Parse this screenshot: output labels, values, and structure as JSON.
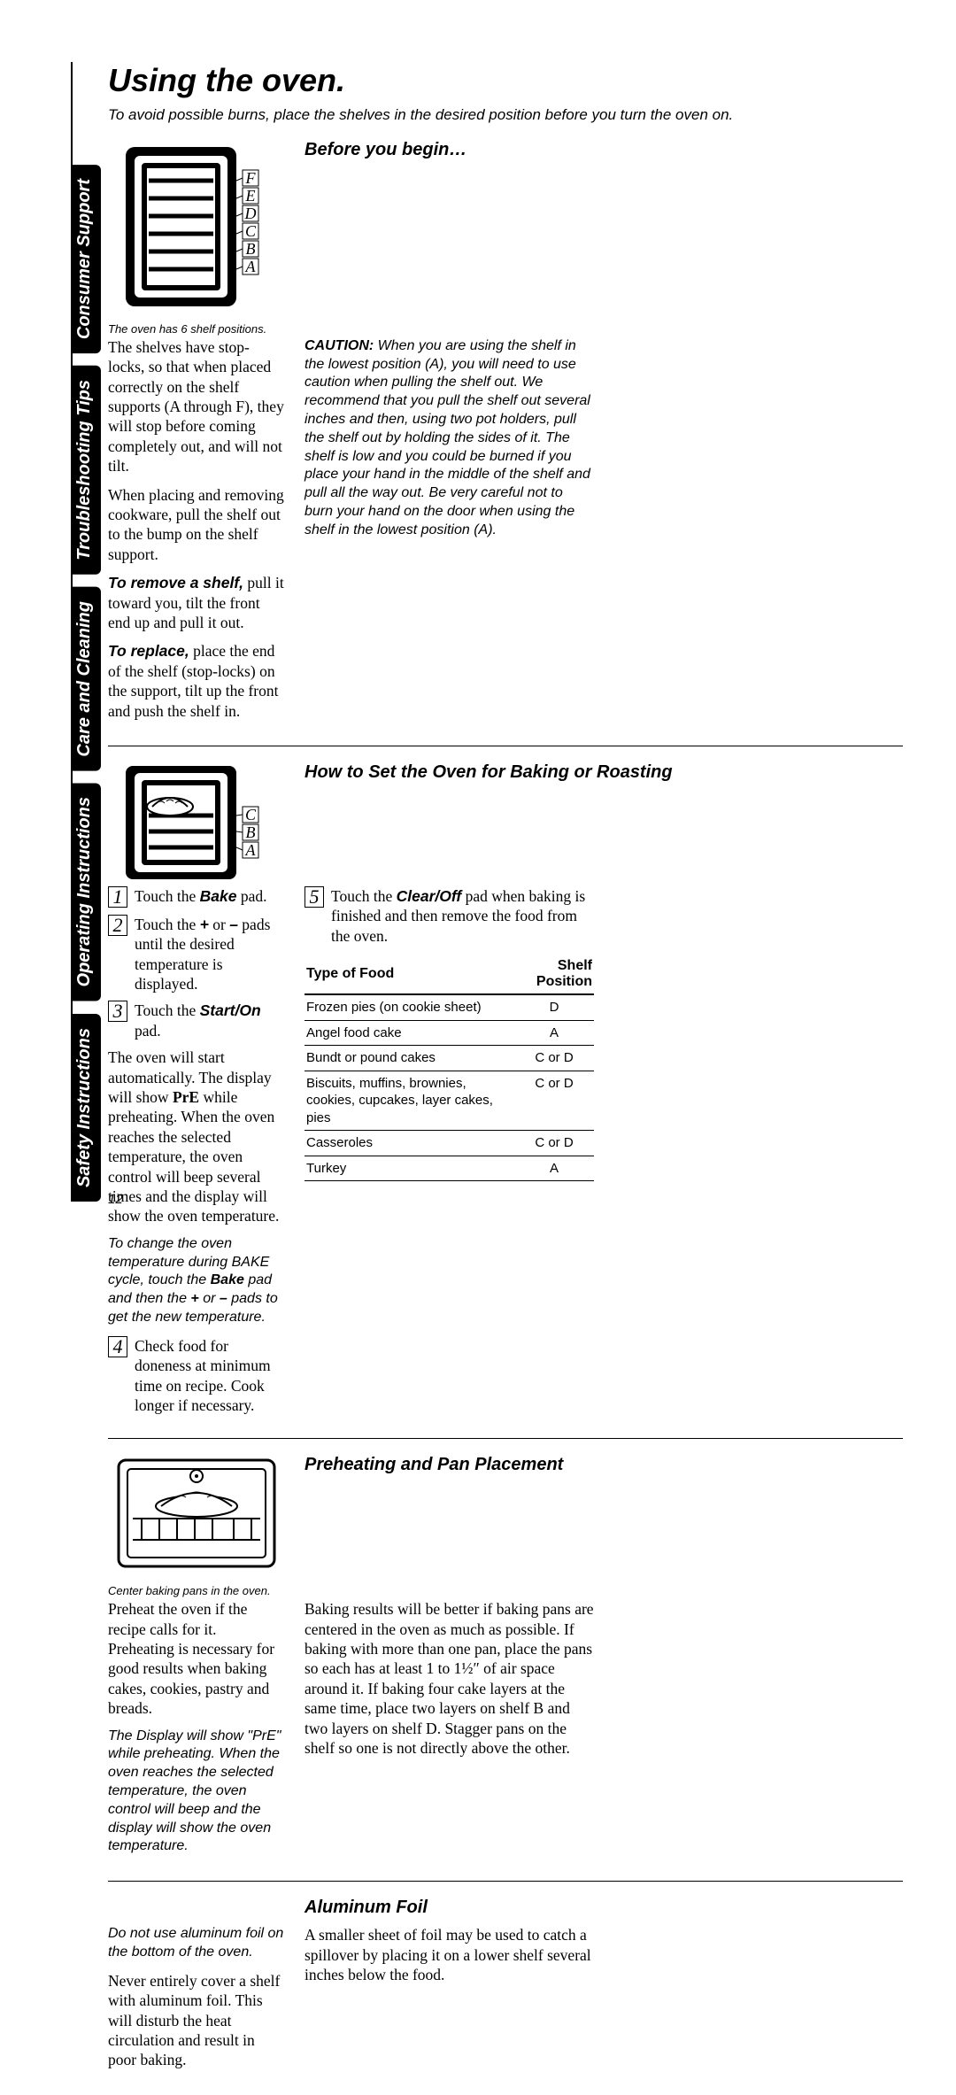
{
  "page_number": "12",
  "tabs": {
    "safety": "Safety Instructions",
    "operating": "Operating Instructions",
    "care": "Care and Cleaning",
    "troubleshooting": "Troubleshooting Tips",
    "support": "Consumer Support"
  },
  "title": "Using the oven.",
  "intro": "To avoid possible burns, place the shelves in the desired position before you turn the oven on.",
  "s1": {
    "heading": "Before you begin…",
    "caption": "The oven has 6 shelf positions.",
    "p1": "The shelves have stop-locks, so that when placed correctly on the shelf supports (A through F), they will stop before coming completely out, and will not tilt.",
    "p2": "When placing and removing cookware, pull the shelf out to the bump on the shelf support.",
    "remove_label": "To remove a shelf,",
    "remove_rest": " pull it toward you, tilt the front end up and pull it out.",
    "replace_label": "To replace,",
    "replace_rest": " place the end of the shelf (stop-locks) on the support, tilt up the front and push the shelf in.",
    "caution_label": "CAUTION:",
    "caution_rest": " When you are using the shelf in the lowest position (A), you will need to use caution when pulling the shelf out. We recommend that you pull the shelf out several inches and then, using two pot holders, pull the shelf out by holding the sides of it. The shelf is low and you could be burned if you place your hand in the middle of the shelf and pull all the way out. Be very careful not to burn your hand on the door when using the shelf in the lowest position (A)."
  },
  "s2": {
    "heading": "How to Set the Oven for Baking or Roasting",
    "step1": "Touch the <b>Bake</b> pad.",
    "step2": "Touch the <b>+</b> or <b>–</b> pads until the desired temperature is displayed.",
    "step3": "Touch the <b>Start/On</b> pad.",
    "p_auto": "The oven will start automatically. The display will show <b>PrE</b> while preheating. When the oven reaches the selected temperature, the oven control will beep several times and the display will show the oven temperature.",
    "p_change": "To change the oven temperature during BAKE cycle, touch the <b>Bake</b> pad and then the <b>+</b> or <b>–</b> pads to get the new temperature.",
    "step4": "Check food for doneness at minimum time on recipe. Cook longer if necessary.",
    "step5": "Touch the <b>Clear/Off</b> pad when baking is finished and then remove the food from the oven.",
    "table": {
      "h1": "Type of Food",
      "h2": "Shelf Position",
      "rows": [
        [
          "Frozen pies (on cookie sheet)",
          "D"
        ],
        [
          "Angel food cake",
          "A"
        ],
        [
          "Bundt or pound cakes",
          "C or D"
        ],
        [
          "Biscuits, muffins, brownies, cookies, cupcakes, layer cakes, pies",
          "C or D"
        ],
        [
          "Casseroles",
          "C or D"
        ],
        [
          "Turkey",
          "A"
        ]
      ]
    }
  },
  "s3": {
    "heading": "Preheating and Pan Placement",
    "caption": "Center baking pans in the oven.",
    "p1": "Preheat the oven if the recipe calls for it. Preheating is necessary for good results when baking cakes, cookies, pastry and breads.",
    "p2_it": "The Display will show \"PrE\" while preheating. When the oven reaches the selected temperature, the oven control will beep and the display will show the oven temperature.",
    "p3": "Baking results will be better if baking pans are centered in the oven as much as possible. If baking with more than one pan, place the pans so each has at least 1 to 1½″ of air space around it. If baking four cake layers at the same time, place two layers on shelf B and two layers on shelf D. Stagger pans on the shelf so one is not directly above the other."
  },
  "s4": {
    "heading": "Aluminum Foil",
    "p1_it": "Do not use aluminum foil on the bottom of the oven.",
    "p2": "Never entirely cover a shelf with aluminum foil. This will disturb the heat circulation and result in poor baking.",
    "p3": "A smaller sheet of foil may be used to catch a spillover by placing it on a lower shelf several inches below the food."
  },
  "colors": {
    "ink": "#000000",
    "paper": "#ffffff"
  }
}
